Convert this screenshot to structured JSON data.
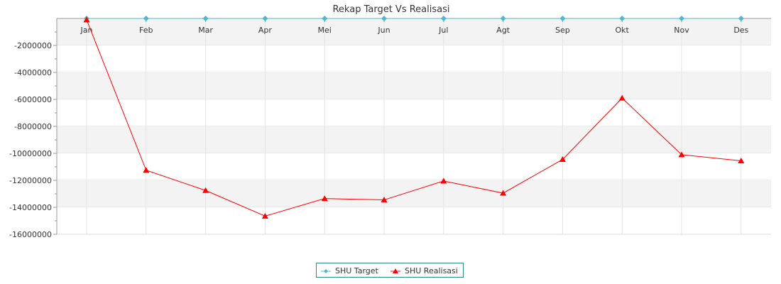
{
  "chart_data": {
    "type": "line",
    "title": "Rekap Target Vs Realisasi",
    "categories": [
      "Jan",
      "Feb",
      "Mar",
      "Apr",
      "Mei",
      "Jun",
      "Jul",
      "Agt",
      "Sep",
      "Okt",
      "Nov",
      "Des"
    ],
    "series": [
      {
        "name": "SHU Target",
        "color": "#4fb8cf",
        "marker": "diamond",
        "values": [
          0,
          0,
          0,
          0,
          0,
          0,
          0,
          0,
          0,
          0,
          0,
          0
        ]
      },
      {
        "name": "SHU Realisasi",
        "color": "#ff0000",
        "marker": "triangle",
        "values": [
          -100000,
          -11250000,
          -12750000,
          -14650000,
          -13350000,
          -13450000,
          -12050000,
          -12950000,
          -10450000,
          -5900000,
          -10100000,
          -10550000
        ]
      }
    ],
    "yticks": [
      "-2000000",
      "-4000000",
      "-6000000",
      "-8000000",
      "-10000000",
      "-12000000",
      "-14000000",
      "-16000000"
    ],
    "ylim": [
      -16000000,
      0
    ],
    "grid": true,
    "legend_position": "bottom-center"
  }
}
